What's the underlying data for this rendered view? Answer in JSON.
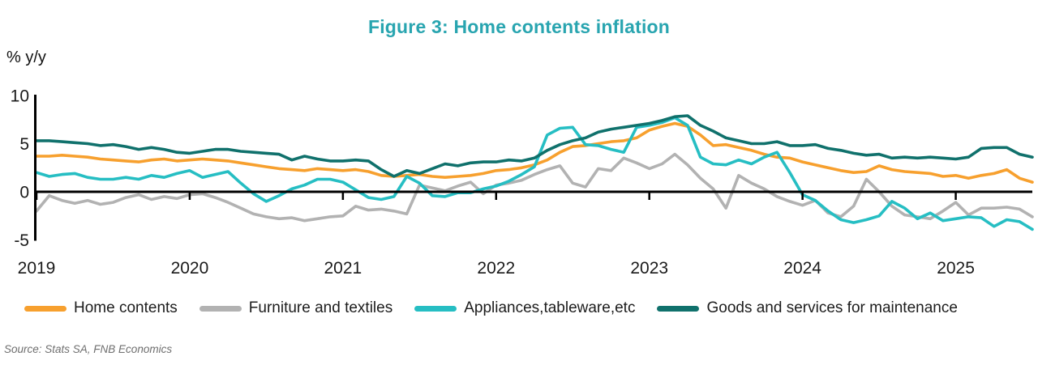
{
  "title": "Figure 3: Home contents inflation",
  "title_color": "#29A5B0",
  "y_axis_label": "% y/y",
  "source": "Source: Stats SA, FNB Economics",
  "axis_color": "#000000",
  "chart_data": {
    "type": "line",
    "title": "Figure 3: Home contents inflation",
    "xlabel": "",
    "ylabel": "% y/y",
    "ylim": [
      -5,
      10
    ],
    "yticks": [
      10,
      5,
      0,
      -5
    ],
    "x_tick_labels": [
      "2019",
      "2020",
      "2021",
      "2022",
      "2023",
      "2024",
      "2025"
    ],
    "x_frequency": "monthly",
    "x_start": "2019-01",
    "x_end": "2025-07",
    "grid": false,
    "legend_position": "bottom",
    "series": [
      {
        "name": "Home contents",
        "color": "#F7A02E",
        "values": [
          3.7,
          3.7,
          3.8,
          3.7,
          3.6,
          3.4,
          3.3,
          3.2,
          3.1,
          3.3,
          3.4,
          3.2,
          3.3,
          3.4,
          3.3,
          3.2,
          3.0,
          2.8,
          2.6,
          2.4,
          2.3,
          2.2,
          2.4,
          2.3,
          2.2,
          2.3,
          2.1,
          1.7,
          1.6,
          1.7,
          1.8,
          1.6,
          1.5,
          1.6,
          1.7,
          1.9,
          2.2,
          2.3,
          2.5,
          2.8,
          3.3,
          4.1,
          4.7,
          4.8,
          5.0,
          5.2,
          5.3,
          5.6,
          6.4,
          6.8,
          7.1,
          6.8,
          5.9,
          4.8,
          4.9,
          4.6,
          4.3,
          3.9,
          3.6,
          3.5,
          3.1,
          2.8,
          2.5,
          2.2,
          2.0,
          2.1,
          2.7,
          2.3,
          2.1,
          2.0,
          1.9,
          1.6,
          1.7,
          1.4,
          1.7,
          1.9,
          2.3,
          1.4,
          1.0
        ]
      },
      {
        "name": "Furniture and textiles",
        "color": "#B2B2B2",
        "values": [
          -2.0,
          -0.4,
          -0.9,
          -1.2,
          -0.9,
          -1.3,
          -1.1,
          -0.6,
          -0.3,
          -0.8,
          -0.5,
          -0.7,
          -0.3,
          -0.2,
          -0.6,
          -1.1,
          -1.7,
          -2.3,
          -2.6,
          -2.8,
          -2.7,
          -3.0,
          -2.8,
          -2.6,
          -2.5,
          -1.5,
          -1.9,
          -1.8,
          -2.0,
          -2.3,
          0.7,
          0.4,
          0.1,
          0.6,
          1.0,
          -0.2,
          0.7,
          0.9,
          1.2,
          1.8,
          2.3,
          2.7,
          0.9,
          0.5,
          2.4,
          2.2,
          3.5,
          3.0,
          2.4,
          2.9,
          3.9,
          2.8,
          1.4,
          0.3,
          -1.7,
          1.7,
          0.9,
          0.3,
          -0.5,
          -1.0,
          -1.4,
          -0.9,
          -2.2,
          -2.6,
          -1.5,
          1.3,
          0.0,
          -1.5,
          -2.4,
          -2.6,
          -2.8,
          -2.0,
          -1.1,
          -2.4,
          -1.7,
          -1.7,
          -1.6,
          -1.8,
          -2.6
        ]
      },
      {
        "name": "Appliances,tableware,etc",
        "color": "#26BEC3",
        "values": [
          2.0,
          1.6,
          1.8,
          1.9,
          1.5,
          1.3,
          1.3,
          1.5,
          1.3,
          1.7,
          1.5,
          1.9,
          2.2,
          1.5,
          1.8,
          2.1,
          0.9,
          -0.2,
          -1.0,
          -0.4,
          0.3,
          0.7,
          1.3,
          1.3,
          1.0,
          0.2,
          -0.6,
          -0.8,
          -0.5,
          1.6,
          0.9,
          -0.4,
          -0.5,
          -0.1,
          -0.1,
          0.3,
          0.6,
          1.1,
          1.8,
          2.6,
          5.9,
          6.6,
          6.7,
          4.9,
          4.8,
          4.4,
          4.1,
          6.7,
          6.9,
          7.2,
          7.7,
          6.9,
          3.6,
          2.9,
          2.8,
          3.3,
          2.9,
          3.6,
          4.1,
          2.0,
          -0.3,
          -0.9,
          -2.0,
          -2.9,
          -3.2,
          -2.9,
          -2.5,
          -1.0,
          -1.7,
          -2.8,
          -2.2,
          -3.0,
          -2.8,
          -2.6,
          -2.7,
          -3.6,
          -2.9,
          -3.1,
          -3.9
        ]
      },
      {
        "name": "Goods and services for maintenance",
        "color": "#10716C",
        "values": [
          5.3,
          5.3,
          5.2,
          5.1,
          5.0,
          4.8,
          4.9,
          4.7,
          4.4,
          4.6,
          4.4,
          4.1,
          4.0,
          4.2,
          4.4,
          4.4,
          4.2,
          4.1,
          4.0,
          3.9,
          3.3,
          3.7,
          3.4,
          3.2,
          3.2,
          3.3,
          3.2,
          2.3,
          1.6,
          2.2,
          1.9,
          2.4,
          2.9,
          2.7,
          3.0,
          3.1,
          3.1,
          3.3,
          3.2,
          3.5,
          4.3,
          4.9,
          5.3,
          5.6,
          6.2,
          6.5,
          6.7,
          6.9,
          7.1,
          7.4,
          7.8,
          7.9,
          6.9,
          6.3,
          5.6,
          5.3,
          5.0,
          5.0,
          5.2,
          4.8,
          4.8,
          4.9,
          4.5,
          4.3,
          4.0,
          3.8,
          3.9,
          3.5,
          3.6,
          3.5,
          3.6,
          3.5,
          3.4,
          3.6,
          4.5,
          4.6,
          4.6,
          3.9,
          3.6
        ]
      }
    ]
  }
}
